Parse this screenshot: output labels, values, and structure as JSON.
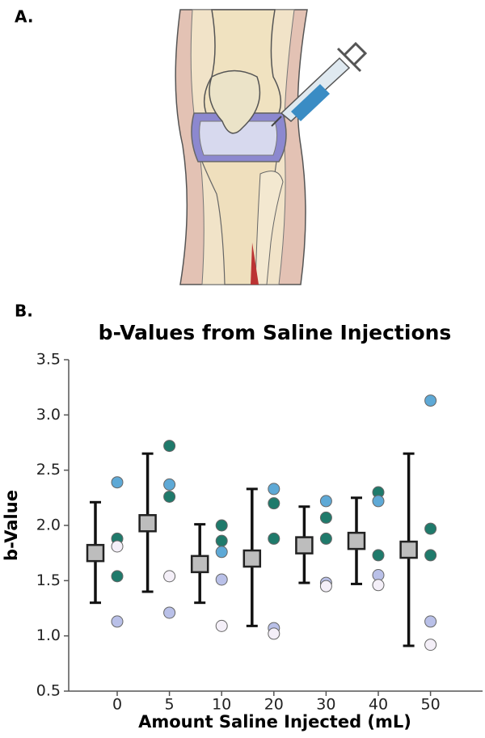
{
  "panel_a_label": "A.",
  "chart_data": {
    "type": "scatter",
    "panel_label": "B.",
    "title": "b-Values from Saline Injections",
    "x_label": "Amount Saline Injected (mL)",
    "y_label": "b-Value",
    "categories": [
      "0",
      "5",
      "10",
      "20",
      "30",
      "40",
      "50"
    ],
    "mean": [
      1.75,
      2.02,
      1.65,
      1.7,
      1.82,
      1.86,
      1.78
    ],
    "lower": [
      1.3,
      1.4,
      1.3,
      1.09,
      1.48,
      1.47,
      0.91
    ],
    "upper": [
      2.21,
      2.65,
      2.01,
      2.33,
      2.17,
      2.25,
      2.65
    ],
    "mean_color": "#bdbdbd",
    "points": [
      [
        2.39,
        1.88,
        1.54,
        1.81,
        1.13
      ],
      [
        2.72,
        2.37,
        2.26,
        1.54,
        1.21
      ],
      [
        2.0,
        1.86,
        1.76,
        1.51,
        1.09
      ],
      [
        2.33,
        2.2,
        1.88,
        1.07,
        1.02
      ],
      [
        2.22,
        2.07,
        1.88,
        1.48,
        1.45
      ],
      [
        2.3,
        2.22,
        1.73,
        1.55,
        1.46
      ],
      [
        3.13,
        1.97,
        1.73,
        1.13,
        0.92
      ]
    ],
    "point_colors": [
      [
        "#5ea9d6",
        "#1f7a6b",
        "#1f7a6b",
        "#f4eff8",
        "#b9c0e8"
      ],
      [
        "#1f7a6b",
        "#5ea9d6",
        "#1f7a6b",
        "#f4eff8",
        "#b9c0e8"
      ],
      [
        "#1f7a6b",
        "#1f7a6b",
        "#5ea9d6",
        "#b9c0e8",
        "#f4eff8"
      ],
      [
        "#5ea9d6",
        "#1f7a6b",
        "#1f7a6b",
        "#b9c0e8",
        "#f4eff8"
      ],
      [
        "#5ea9d6",
        "#1f7a6b",
        "#1f7a6b",
        "#b9c0e8",
        "#f4eff8"
      ],
      [
        "#1f7a6b",
        "#5ea9d6",
        "#1f7a6b",
        "#b9c0e8",
        "#f4eff8"
      ],
      [
        "#5ea9d6",
        "#1f7a6b",
        "#1f7a6b",
        "#b9c0e8",
        "#f4eff8"
      ]
    ],
    "ylim": [
      0.5,
      3.5
    ],
    "yticks": [
      0.5,
      {
        "value": 1,
        "label": "1.0"
      },
      1.5,
      {
        "value": 2,
        "label": "2.0"
      },
      2.5,
      {
        "value": 3,
        "label": "3.0"
      },
      3.5
    ],
    "grid": false
  }
}
